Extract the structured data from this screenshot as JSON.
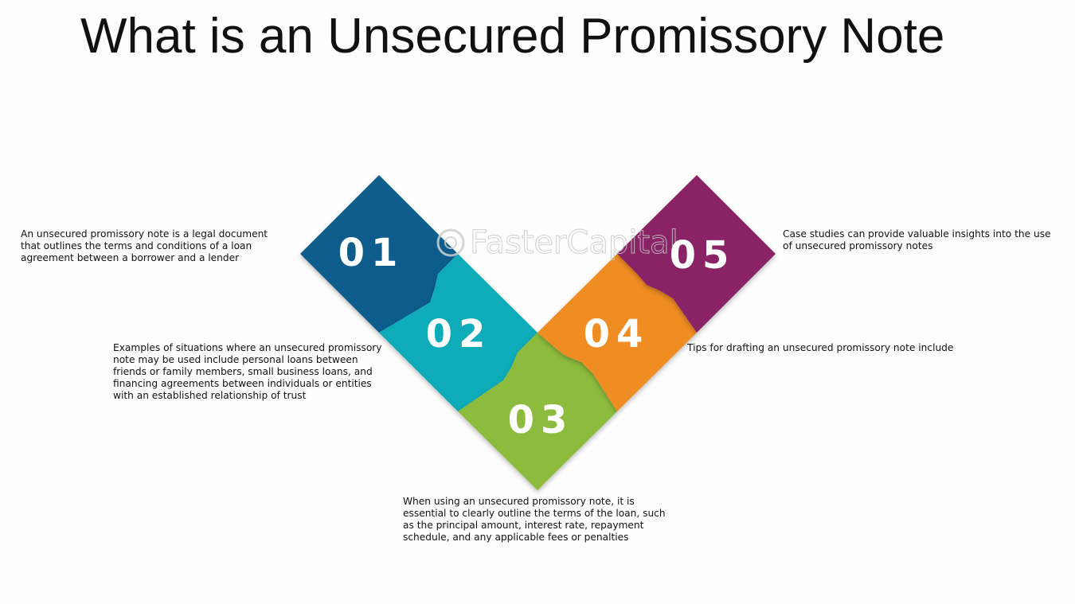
{
  "title": "What is an Unsecured Promissory Note",
  "watermark": "FasterCapital",
  "colors": {
    "step1": "#0d5b8c",
    "step2": "#0bacb8",
    "step3": "#8dbb3c",
    "step4": "#ef8c22",
    "step5": "#8a2066"
  },
  "steps": [
    {
      "number": "01",
      "description": "An unsecured promissory note is a legal document that outlines the terms and conditions of a loan agreement between a borrower and a lender"
    },
    {
      "number": "02",
      "description": "Examples of situations where an unsecured promissory note may be used include personal loans between friends or family members, small business loans, and financing agreements between individuals or entities with an established relationship of trust"
    },
    {
      "number": "03",
      "description": "When using an unsecured promissory note, it is essential to clearly outline the terms of the loan, such as the principal amount, interest rate, repayment schedule, and any applicable fees or penalties"
    },
    {
      "number": "04",
      "description": "Tips for drafting an unsecured promissory note include"
    },
    {
      "number": "05",
      "description": "Case studies can provide valuable insights into the use of unsecured promissory notes"
    }
  ]
}
